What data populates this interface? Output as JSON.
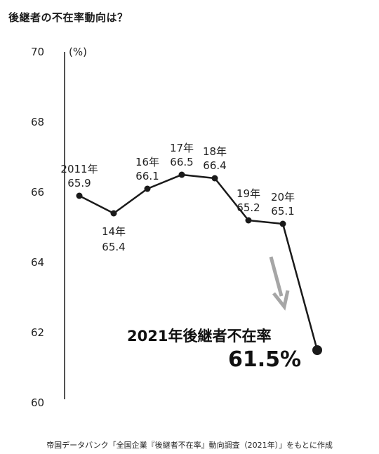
{
  "title": "後継者の不在率動向は？",
  "source": "帝国データバンク「全国企業『後継者不在率』動向調査（2021年）」をもとに作成",
  "chart_data": {
    "type": "line",
    "unit": "(%)",
    "ylim": [
      60,
      70
    ],
    "yticks": [
      "70",
      "68",
      "66",
      "64",
      "62",
      "60"
    ],
    "points": [
      {
        "label": "2011年",
        "value": 65.9,
        "value_text": "65.9"
      },
      {
        "label": "14年",
        "value": 65.4,
        "value_text": "65.4"
      },
      {
        "label": "16年",
        "value": 66.1,
        "value_text": "66.1"
      },
      {
        "label": "17年",
        "value": 66.5,
        "value_text": "66.5"
      },
      {
        "label": "18年",
        "value": 66.4,
        "value_text": "66.4"
      },
      {
        "label": "19年",
        "value": 65.2,
        "value_text": "65.2"
      },
      {
        "label": "20年",
        "value": 65.1,
        "value_text": "65.1"
      },
      {
        "label": "2021年",
        "value": 61.5,
        "value_text": "61.5"
      }
    ],
    "annotation": {
      "line1": "2021年後継者不在率",
      "line2": "61.5%"
    },
    "colors": {
      "line": "#1a1a1a",
      "arrow": "#a6a6a6"
    }
  }
}
